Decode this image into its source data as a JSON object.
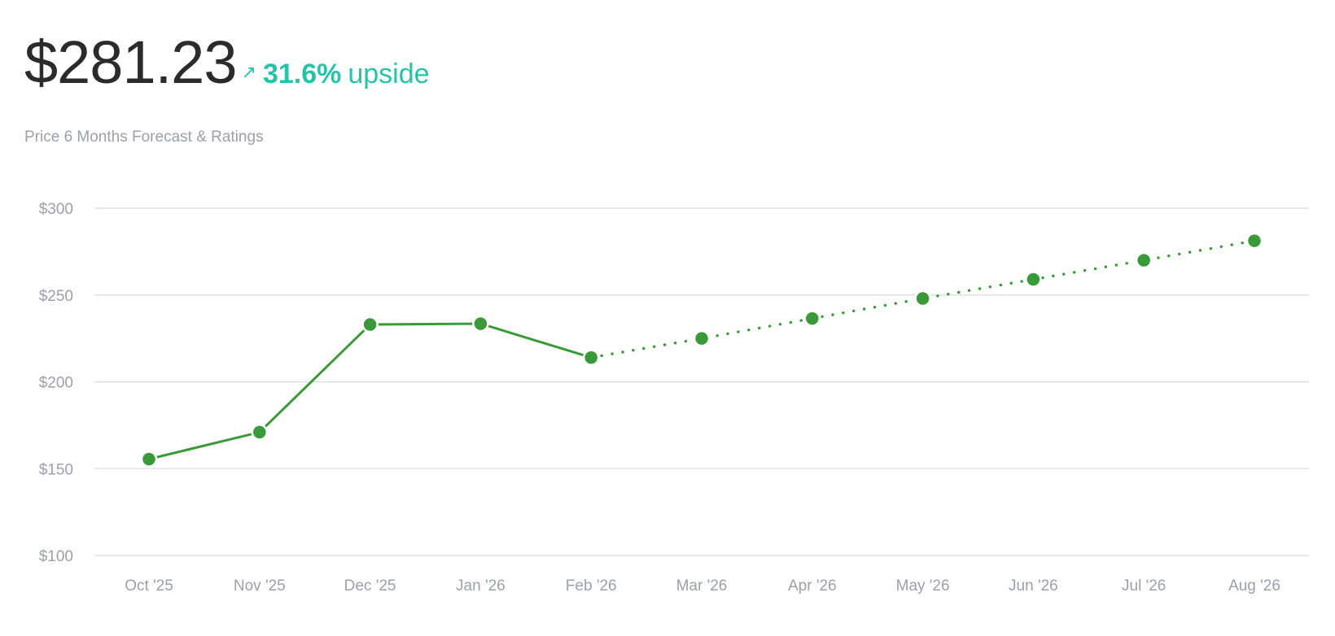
{
  "header": {
    "price": "$281.23",
    "arrow_icon": "north-east-arrow-icon",
    "upside_value": "31.6%",
    "upside_label": "upside",
    "subtitle": "Price 6 Months Forecast & Ratings"
  },
  "colors": {
    "accent": "#25c4a8",
    "line": "#3a9a3a",
    "grid": "#d9dbe0",
    "text_muted": "#9aa0ac"
  },
  "chart_data": {
    "type": "line",
    "categories": [
      "Oct '25",
      "Nov '25",
      "Dec '25",
      "Jan '26",
      "Feb '26",
      "Mar '26",
      "Apr '26",
      "May '26",
      "Jun '26",
      "Jul '26",
      "Aug '26"
    ],
    "series": [
      {
        "style": "solid",
        "values": [
          155.5,
          171,
          233,
          233.5,
          214,
          null,
          null,
          null,
          null,
          null,
          null
        ]
      },
      {
        "style": "dotted",
        "values": [
          null,
          null,
          null,
          null,
          214,
          225,
          236.5,
          248,
          259,
          270,
          281.23
        ]
      }
    ],
    "ylim": [
      100,
      300
    ],
    "yticks": [
      300,
      250,
      200,
      150,
      100
    ],
    "ytick_labels": [
      "$300",
      "$250",
      "$200",
      "$150",
      "$100"
    ],
    "grid": true
  }
}
